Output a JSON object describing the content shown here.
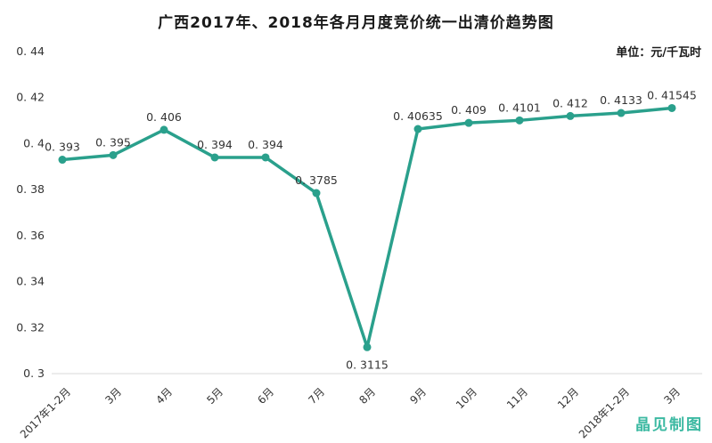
{
  "unit_label": "单位：元/千瓦时",
  "watermark": "晶见制图",
  "colors": {
    "line": "#2aa08c",
    "marker": "#2aa08c",
    "watermark": "#3cb9a2",
    "axis_line": "#d9d9d9",
    "text": "#333333",
    "title": "#1a1a1a",
    "background": "#ffffff"
  },
  "chart_data": {
    "type": "line",
    "title": "广西2017年、2018年各月月度竞价统一出清价趋势图",
    "xlabel": "",
    "ylabel": "单位：元/千瓦时",
    "categories": [
      "2017年1-2月",
      "3月",
      "4月",
      "5月",
      "6月",
      "7月",
      "8月",
      "9月",
      "10月",
      "11月",
      "12月",
      "2018年1-2月",
      "3月"
    ],
    "values": [
      0.393,
      0.395,
      0.406,
      0.394,
      0.394,
      0.3785,
      0.3115,
      0.40635,
      0.409,
      0.4101,
      0.412,
      0.4133,
      0.41545
    ],
    "labels": [
      "0. 393",
      "0. 395",
      "0. 406",
      "0. 394",
      "0. 394",
      "0. 3785",
      "0. 3115",
      "0. 40635",
      "0. 409",
      "0. 4101",
      "0. 412",
      "0. 4133",
      "0. 41545"
    ],
    "label_below_indices": [
      6
    ],
    "ylim": [
      0.3,
      0.44
    ],
    "yticks": [
      0.44,
      0.42,
      0.4,
      0.38,
      0.36,
      0.34,
      0.32,
      0.3
    ],
    "ytick_labels": [
      "0. 44",
      "0. 42",
      "0. 4",
      "0. 38",
      "0. 36",
      "0. 34",
      "0. 32",
      "0. 3"
    ],
    "grid": false,
    "legend": "none",
    "marker": "circle",
    "x_label_rotation": -45
  }
}
